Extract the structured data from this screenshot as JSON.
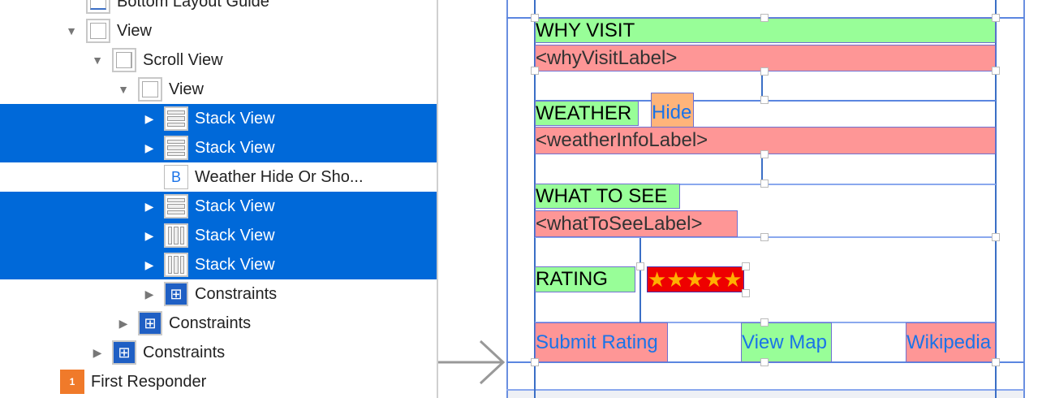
{
  "outline": {
    "items": [
      {
        "label": "Bottom Layout Guide",
        "icon": "layout-guide-icon"
      },
      {
        "label": "View",
        "icon": "view-icon",
        "expanded": true
      },
      {
        "label": "Scroll View",
        "icon": "scroll-view-icon",
        "expanded": true
      },
      {
        "label": "View",
        "icon": "view-icon",
        "expanded": true
      },
      {
        "label": "Stack View",
        "icon": "vertical-stack-icon",
        "selected": true
      },
      {
        "label": "Stack View",
        "icon": "vertical-stack-icon",
        "selected": true
      },
      {
        "label": "Weather Hide Or Sho...",
        "icon": "button-icon",
        "icon_text": "B"
      },
      {
        "label": "Stack View",
        "icon": "vertical-stack-icon",
        "selected": true
      },
      {
        "label": "Stack View",
        "icon": "horizontal-stack-icon",
        "selected": true
      },
      {
        "label": "Stack View",
        "icon": "horizontal-stack-icon",
        "selected": true
      },
      {
        "label": "Constraints",
        "icon": "constraints-icon"
      },
      {
        "label": "Constraints",
        "icon": "constraints-icon"
      },
      {
        "label": "Constraints",
        "icon": "constraints-icon"
      },
      {
        "label": "First Responder",
        "icon": "first-responder-icon",
        "icon_text": "1"
      }
    ]
  },
  "canvas": {
    "why_visit": "WHY VISIT",
    "why_visit_label": "<whyVisitLabel>",
    "weather": "WEATHER",
    "hide": "Hide",
    "weather_info_label": "<weatherInfoLabel>",
    "what_to_see": "WHAT TO SEE",
    "what_to_see_label": "<whatToSeeLabel>",
    "rating": "RATING",
    "stars": "★★★★★",
    "submit_rating": "Submit Rating",
    "view_map": "View Map",
    "wikipedia": "Wikipedia"
  },
  "colors": {
    "selection": "#0069d9",
    "label_green": "#98fe98",
    "label_red": "#fe9696",
    "link_blue": "#1a73e8",
    "rating_bg": "#ee0000",
    "star": "#ffb000"
  }
}
